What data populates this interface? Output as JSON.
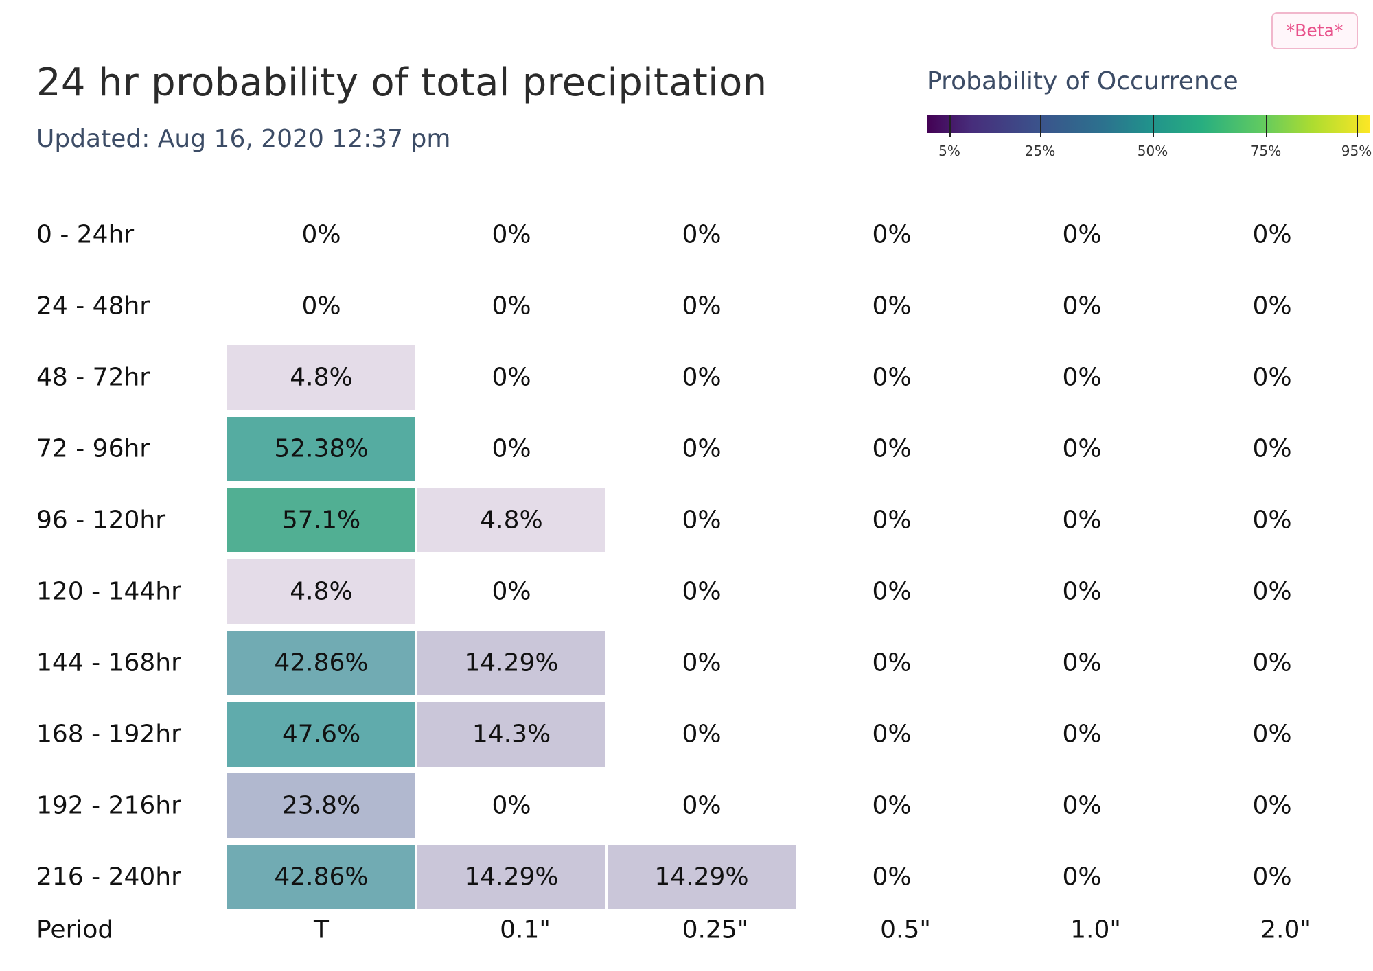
{
  "header": {
    "title": "24 hr probability of total precipitation",
    "updated": "Updated: Aug 16, 2020 12:37 pm",
    "beta_badge": "*Beta*"
  },
  "legend": {
    "title": "Probability of Occurrence",
    "ticks": [
      "5%",
      "25%",
      "50%",
      "75%",
      "95%"
    ],
    "tick_values": [
      5,
      25,
      50,
      75,
      95
    ]
  },
  "colors": {
    "text": "#111111",
    "subtitle": "#3c4c66",
    "beta_text": "#e8508a",
    "beta_border": "#f1b7cc"
  },
  "chart_data": {
    "type": "heatmap",
    "title": "24 hr probability of total precipitation",
    "xlabel": "",
    "ylabel": "Period",
    "categories": [
      "T",
      "0.1\"",
      "0.25\"",
      "0.5\"",
      "1.0\"",
      "2.0\""
    ],
    "rows": [
      "0 - 24hr",
      "24 - 48hr",
      "48 - 72hr",
      "72 - 96hr",
      "96 - 120hr",
      "120 - 144hr",
      "144 - 168hr",
      "168 - 192hr",
      "192 - 216hr",
      "216 - 240hr"
    ],
    "values": [
      [
        0,
        0,
        0,
        0,
        0,
        0
      ],
      [
        0,
        0,
        0,
        0,
        0,
        0
      ],
      [
        4.8,
        0,
        0,
        0,
        0,
        0
      ],
      [
        52.38,
        0,
        0,
        0,
        0,
        0
      ],
      [
        57.1,
        4.8,
        0,
        0,
        0,
        0
      ],
      [
        4.8,
        0,
        0,
        0,
        0,
        0
      ],
      [
        42.86,
        14.29,
        0,
        0,
        0,
        0
      ],
      [
        47.6,
        14.3,
        0,
        0,
        0,
        0
      ],
      [
        23.8,
        0,
        0,
        0,
        0,
        0
      ],
      [
        42.86,
        14.29,
        14.29,
        0,
        0,
        0
      ]
    ],
    "labels": [
      [
        "0%",
        "0%",
        "0%",
        "0%",
        "0%",
        "0%"
      ],
      [
        "0%",
        "0%",
        "0%",
        "0%",
        "0%",
        "0%"
      ],
      [
        "4.8%",
        "0%",
        "0%",
        "0%",
        "0%",
        "0%"
      ],
      [
        "52.38%",
        "0%",
        "0%",
        "0%",
        "0%",
        "0%"
      ],
      [
        "57.1%",
        "4.8%",
        "0%",
        "0%",
        "0%",
        "0%"
      ],
      [
        "4.8%",
        "0%",
        "0%",
        "0%",
        "0%",
        "0%"
      ],
      [
        "42.86%",
        "14.29%",
        "0%",
        "0%",
        "0%",
        "0%"
      ],
      [
        "47.6%",
        "14.3%",
        "0%",
        "0%",
        "0%",
        "0%"
      ],
      [
        "23.8%",
        "0%",
        "0%",
        "0%",
        "0%",
        "0%"
      ],
      [
        "42.86%",
        "14.29%",
        "14.29%",
        "0%",
        "0%",
        "0%"
      ]
    ],
    "colorscale": "viridis",
    "legend": "top-right"
  }
}
